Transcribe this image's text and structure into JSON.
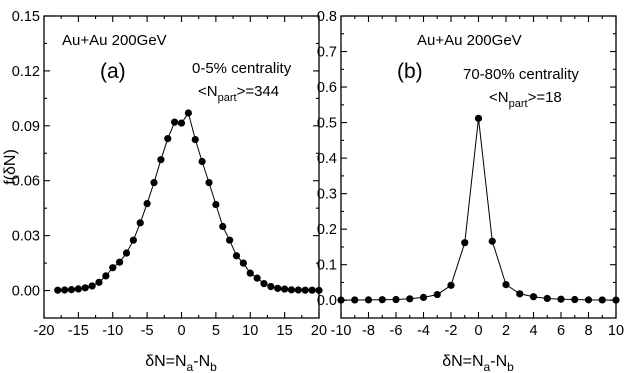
{
  "chart_data": [
    {
      "type": "scatter",
      "panel_label": "(a)",
      "annotations": {
        "system": "Au+Au 200GeV",
        "centrality": "0-5% centrality",
        "npart_open": "<N",
        "npart_sub": "part",
        "npart_close": ">=344"
      },
      "xlabel": {
        "main": "δN=N",
        "sub_a": "a",
        "mid": "-N",
        "sub_b": "b"
      },
      "ylabel": "f(δN)",
      "xlim": [
        -20,
        20
      ],
      "ylim": [
        -0.015,
        0.15
      ],
      "xticks": [
        -20,
        -15,
        -10,
        -5,
        0,
        5,
        10,
        15,
        20
      ],
      "xtick_labels": [
        "-20",
        "-15",
        "-10",
        "-5",
        "0",
        "5",
        "10",
        "15",
        "20"
      ],
      "yticks": [
        0,
        0.03,
        0.06,
        0.09,
        0.12,
        0.15
      ],
      "ytick_labels": [
        "0.00",
        "0.03",
        "0.06",
        "0.09",
        "0.12",
        "0.15"
      ],
      "grid": false,
      "series": [
        {
          "line": true,
          "marker": "filled-circle",
          "color": "#000000",
          "x": [
            -18,
            -17,
            -16,
            -15,
            -14,
            -13,
            -12,
            -11,
            -10,
            -9,
            -8,
            -7,
            -6,
            -5,
            -4,
            -3,
            -2,
            -1,
            0,
            1,
            2,
            3,
            4,
            5,
            6,
            7,
            8,
            9,
            10,
            11,
            12,
            13,
            14,
            15,
            16,
            17,
            18,
            19,
            20
          ],
          "y": [
            0.0002,
            0.0003,
            0.0005,
            0.0009,
            0.0015,
            0.0025,
            0.0045,
            0.008,
            0.0125,
            0.0155,
            0.0205,
            0.0275,
            0.037,
            0.0475,
            0.059,
            0.0715,
            0.083,
            0.092,
            0.0915,
            0.097,
            0.0825,
            0.0705,
            0.059,
            0.047,
            0.035,
            0.0275,
            0.019,
            0.015,
            0.0095,
            0.0068,
            0.0038,
            0.0022,
            0.0012,
            0.0008,
            0.0004,
            0.0003,
            0.0002,
            0.0002,
            0.0001
          ]
        }
      ]
    },
    {
      "type": "scatter",
      "panel_label": "(b)",
      "annotations": {
        "system": "Au+Au 200GeV",
        "centrality": "70-80% centrality",
        "npart_open": "<N",
        "npart_sub": "part",
        "npart_close": ">=18"
      },
      "xlabel": {
        "main": "δN=N",
        "sub_a": "a",
        "mid": "-N",
        "sub_b": "b"
      },
      "ylabel": "",
      "xlim": [
        -10,
        10
      ],
      "ylim": [
        -0.05,
        0.8
      ],
      "xticks": [
        -10,
        -8,
        -6,
        -4,
        -2,
        0,
        2,
        4,
        6,
        8,
        10
      ],
      "xtick_labels": [
        "-10",
        "-8",
        "-6",
        "-4",
        "-2",
        "0",
        "2",
        "4",
        "6",
        "8",
        "10"
      ],
      "yticks": [
        0,
        0.1,
        0.2,
        0.3,
        0.4,
        0.5,
        0.6,
        0.7,
        0.8
      ],
      "ytick_labels": [
        "0.0",
        "0.1",
        "0.2",
        "0.3",
        "0.4",
        "0.5",
        "0.6",
        "0.7",
        "0.8"
      ],
      "grid": false,
      "series": [
        {
          "line": true,
          "marker": "filled-circle",
          "color": "#000000",
          "x": [
            -10,
            -9,
            -8,
            -7,
            -6,
            -5,
            -4,
            -3,
            -2,
            -1,
            0,
            1,
            2,
            3,
            4,
            5,
            6,
            7,
            8,
            9,
            10
          ],
          "y": [
            0.0005,
            0.0008,
            0.001,
            0.0015,
            0.002,
            0.004,
            0.008,
            0.016,
            0.042,
            0.162,
            0.512,
            0.166,
            0.044,
            0.018,
            0.01,
            0.005,
            0.003,
            0.002,
            0.001,
            0.0008,
            0.0005
          ]
        }
      ]
    }
  ]
}
